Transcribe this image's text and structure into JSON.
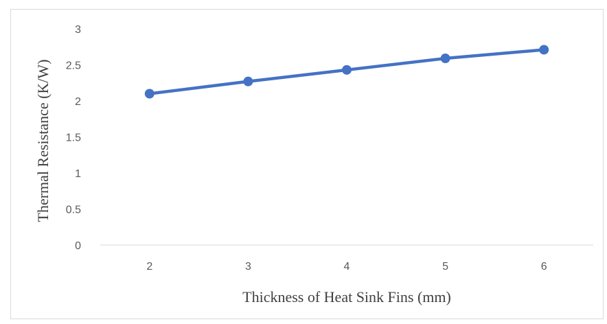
{
  "chart_data": {
    "type": "line",
    "title": "",
    "xlabel": "Thickness of Heat Sink Fins (mm)",
    "ylabel": "Thermal Resistance (K/W)",
    "x": [
      2,
      3,
      4,
      5,
      6
    ],
    "x_tick_labels": [
      "2",
      "3",
      "4",
      "5",
      "6"
    ],
    "y_tick_labels": [
      "0",
      "0.5",
      "1",
      "1.5",
      "2",
      "2.5",
      "3"
    ],
    "ylim": [
      0,
      3
    ],
    "grid": false,
    "legend": "none",
    "series": [
      {
        "values": [
          2.1,
          2.27,
          2.43,
          2.59,
          2.71
        ],
        "color": "#4472C4"
      }
    ]
  }
}
